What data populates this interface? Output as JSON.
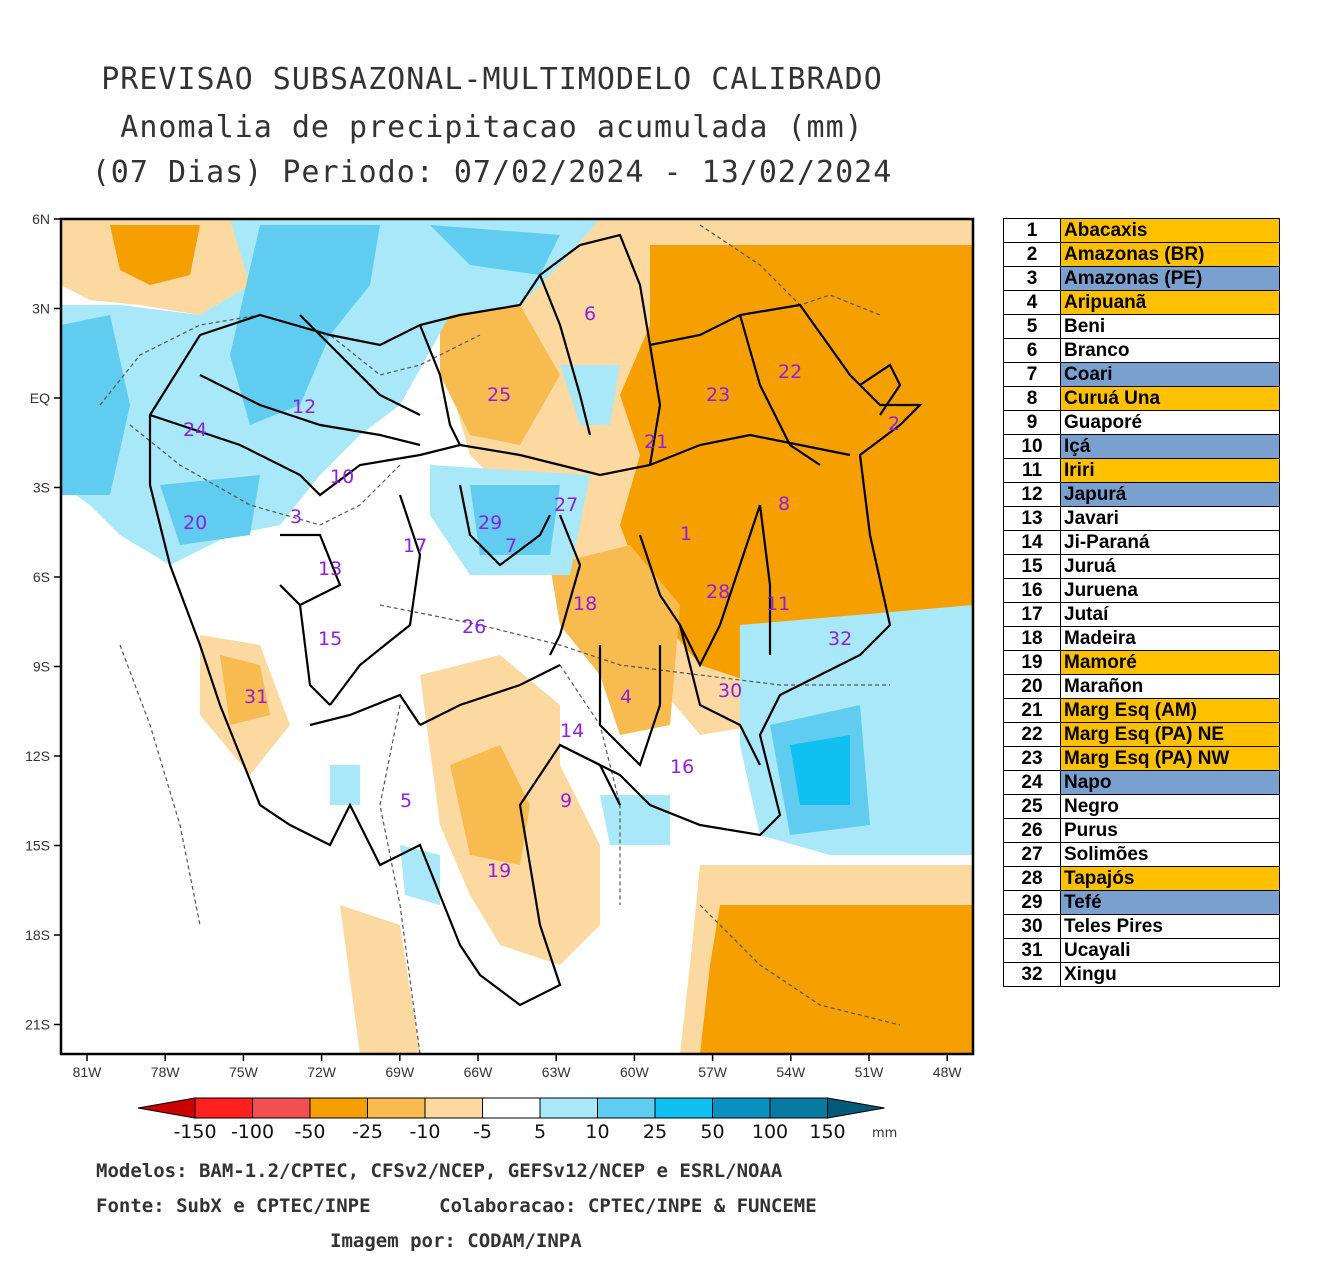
{
  "title": {
    "line1": "PREVISAO SUBSAZONAL-MULTIMODELO CALIBRADO",
    "line2": "Anomalia de precipitacao acumulada (mm)",
    "line3": "(07 Dias) Periodo: 07/02/2024 - 13/02/2024"
  },
  "axes": {
    "lat_labels": [
      "6N",
      "3N",
      "EQ",
      "3S",
      "6S",
      "9S",
      "12S",
      "15S",
      "18S",
      "21S"
    ],
    "lon_labels": [
      "81W",
      "78W",
      "75W",
      "72W",
      "69W",
      "66W",
      "63W",
      "60W",
      "57W",
      "54W",
      "51W",
      "48W"
    ]
  },
  "regions": [
    {
      "num": "1",
      "name": "Abacaxis",
      "color": "#ffc000"
    },
    {
      "num": "2",
      "name": "Amazonas (BR)",
      "color": "#ffc000"
    },
    {
      "num": "3",
      "name": "Amazonas (PE)",
      "color": "#7aa0d0"
    },
    {
      "num": "4",
      "name": "Aripuanã",
      "color": "#ffc000"
    },
    {
      "num": "5",
      "name": "Beni",
      "color": "#ffffff"
    },
    {
      "num": "6",
      "name": "Branco",
      "color": "#ffffff"
    },
    {
      "num": "7",
      "name": "Coari",
      "color": "#7aa0d0"
    },
    {
      "num": "8",
      "name": "Curuá Una",
      "color": "#ffc000"
    },
    {
      "num": "9",
      "name": "Guaporé",
      "color": "#ffffff"
    },
    {
      "num": "10",
      "name": "Içá",
      "color": "#7aa0d0"
    },
    {
      "num": "11",
      "name": "Iriri",
      "color": "#ffc000"
    },
    {
      "num": "12",
      "name": "Japurá",
      "color": "#7aa0d0"
    },
    {
      "num": "13",
      "name": "Javari",
      "color": "#ffffff"
    },
    {
      "num": "14",
      "name": "Ji-Paraná",
      "color": "#ffffff"
    },
    {
      "num": "15",
      "name": "Juruá",
      "color": "#ffffff"
    },
    {
      "num": "16",
      "name": "Juruena",
      "color": "#ffffff"
    },
    {
      "num": "17",
      "name": "Jutaí",
      "color": "#ffffff"
    },
    {
      "num": "18",
      "name": "Madeira",
      "color": "#ffffff"
    },
    {
      "num": "19",
      "name": "Mamoré",
      "color": "#ffc000"
    },
    {
      "num": "20",
      "name": "Marañon",
      "color": "#ffffff"
    },
    {
      "num": "21",
      "name": "Marg Esq (AM)",
      "color": "#ffc000"
    },
    {
      "num": "22",
      "name": "Marg Esq (PA) NE",
      "color": "#ffc000"
    },
    {
      "num": "23",
      "name": "Marg Esq (PA) NW",
      "color": "#ffc000"
    },
    {
      "num": "24",
      "name": "Napo",
      "color": "#7aa0d0"
    },
    {
      "num": "25",
      "name": "Negro",
      "color": "#ffffff"
    },
    {
      "num": "26",
      "name": "Purus",
      "color": "#ffffff"
    },
    {
      "num": "27",
      "name": "Solimões",
      "color": "#ffffff"
    },
    {
      "num": "28",
      "name": "Tapajós",
      "color": "#ffc000"
    },
    {
      "num": "29",
      "name": "Tefé",
      "color": "#7aa0d0"
    },
    {
      "num": "30",
      "name": "Teles Pires",
      "color": "#ffffff"
    },
    {
      "num": "31",
      "name": "Ucayali",
      "color": "#ffffff"
    },
    {
      "num": "32",
      "name": "Xingu",
      "color": "#ffffff"
    }
  ],
  "colorbar": {
    "labels": [
      "-150",
      "-100",
      "-50",
      "-25",
      "-10",
      "-5",
      "5",
      "10",
      "25",
      "50",
      "100",
      "150"
    ],
    "unit": "mm",
    "colors": [
      "#cc0000",
      "#ff2020",
      "#f05050",
      "#f5a000",
      "#f8bb50",
      "#fcd9a0",
      "#ffffff",
      "#a8e8f8",
      "#60ccf0",
      "#10c0f0",
      "#0a90c0",
      "#087aa0",
      "#005a78"
    ]
  },
  "footer": {
    "models": "Modelos: BAM-1.2/CPTEC, CFSv2/NCEP, GEFSv12/NCEP e ESRL/NOAA",
    "source": "Fonte: SubX e CPTEC/INPE      Colaboracao: CPTEC/INPE & FUNCEME",
    "image_by": "Imagem por: CODAM/INPA"
  }
}
